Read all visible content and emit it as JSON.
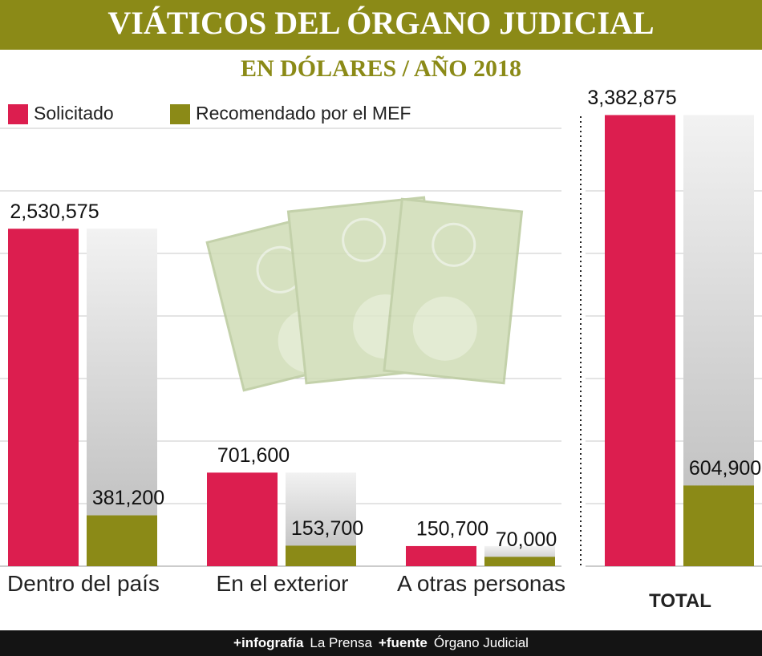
{
  "chart_data": [
    {
      "type": "bar",
      "title": "VIÁTICOS DEL ÓRGANO JUDICIAL",
      "subtitle": "EN DÓLARES / AÑO 2018",
      "categories": [
        "Dentro del país",
        "En el exterior",
        "A otras personas"
      ],
      "series": [
        {
          "name": "Solicitado",
          "color": "#dc1e4f",
          "values": [
            2530575,
            701600,
            150700
          ],
          "value_labels": [
            "2,530,575",
            "701,600",
            "150,700"
          ]
        },
        {
          "name": "Recomendado por el MEF",
          "color": "#8b8a17",
          "values": [
            381200,
            153700,
            70000
          ],
          "value_labels": [
            "381,200",
            "153,700",
            "70,000"
          ]
        }
      ],
      "ylim": [
        0,
        3500000
      ],
      "grid": true,
      "legend": "top-left"
    },
    {
      "type": "bar",
      "categories": [
        "TOTAL"
      ],
      "series": [
        {
          "color": "#dc1e4f",
          "values": [
            3382875
          ],
          "value_labels": [
            "3,382,875"
          ]
        },
        {
          "color": "#8b8a17",
          "values": [
            604900
          ],
          "value_labels": [
            "604,900"
          ]
        }
      ],
      "ylim": [
        0,
        3500000
      ],
      "grid": true
    }
  ],
  "footer": {
    "credit_label": "+infografía",
    "credit": "La Prensa",
    "source_label": "+fuente",
    "source": "Órgano Judicial"
  }
}
